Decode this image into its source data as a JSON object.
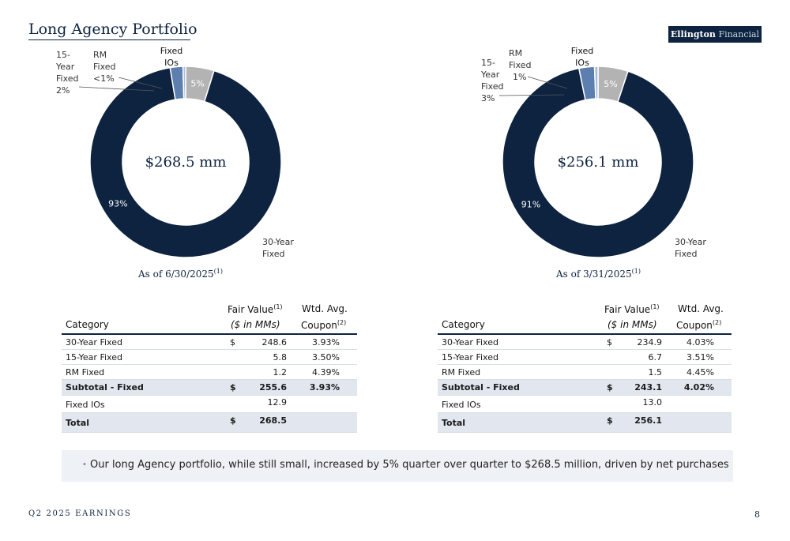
{
  "title": "Long Agency Portfolio",
  "logo": {
    "part1": "Ellington",
    "part2": "Financial"
  },
  "colors": {
    "navy": "#0d2340",
    "slate_blue": "#5d7fb0",
    "light_blue": "#a9bdd8",
    "gray": "#b3b3b3"
  },
  "chart_data": [
    {
      "type": "pie",
      "categories": [
        "30-Year Fixed",
        "15-Year Fixed",
        "RM Fixed",
        "Fixed IOs"
      ],
      "values": [
        248.6,
        5.8,
        1.2,
        12.9
      ],
      "data_labels": [
        "93%",
        "2%",
        "<1%",
        "5%"
      ],
      "center_label": "$268.5 mm",
      "caption": "As of 6/30/2025",
      "caption_note": "(1)"
    },
    {
      "type": "pie",
      "categories": [
        "30-Year Fixed",
        "15-Year Fixed",
        "RM Fixed",
        "Fixed IOs"
      ],
      "values": [
        234.9,
        6.7,
        1.5,
        13.0
      ],
      "data_labels": [
        "91%",
        "3%",
        "1%",
        "5%"
      ],
      "center_label": "$256.1 mm",
      "caption": "As of 3/31/2025",
      "caption_note": "(1)"
    }
  ],
  "labels": {
    "fixed_ios": [
      "Fixed",
      "IOs"
    ],
    "rm_fixed": [
      "RM",
      "Fixed"
    ],
    "y15": [
      "15-",
      "Year",
      "Fixed"
    ],
    "y30": [
      "30-Year",
      "Fixed"
    ]
  },
  "table_headers": {
    "category": "Category",
    "fair_value": "Fair Value",
    "fair_value_note": "(1)",
    "fair_value_sub": "($ in MMs)",
    "coupon_top": "Wtd. Avg.",
    "coupon_bottom": "Coupon",
    "coupon_note": "(2)"
  },
  "tables": [
    {
      "rows": [
        {
          "category": "30-Year Fixed",
          "dollar": "$",
          "value": "248.6",
          "coupon": "3.93%"
        },
        {
          "category": "15-Year Fixed",
          "dollar": "",
          "value": "5.8",
          "coupon": "3.50%"
        },
        {
          "category": "RM Fixed",
          "dollar": "",
          "value": "1.2",
          "coupon": "4.39%"
        }
      ],
      "subtotal": {
        "category": "Subtotal - Fixed",
        "dollar": "$",
        "value": "255.6",
        "coupon": "3.93%"
      },
      "ios": {
        "category": "Fixed IOs",
        "value": "12.9"
      },
      "total": {
        "category": "Total",
        "dollar": "$",
        "value": "268.5"
      }
    },
    {
      "rows": [
        {
          "category": "30-Year Fixed",
          "dollar": "$",
          "value": "234.9",
          "coupon": "4.03%"
        },
        {
          "category": "15-Year Fixed",
          "dollar": "",
          "value": "6.7",
          "coupon": "3.51%"
        },
        {
          "category": "RM Fixed",
          "dollar": "",
          "value": "1.5",
          "coupon": "4.45%"
        }
      ],
      "subtotal": {
        "category": "Subtotal - Fixed",
        "dollar": "$",
        "value": "243.1",
        "coupon": "4.02%"
      },
      "ios": {
        "category": "Fixed IOs",
        "value": "13.0"
      },
      "total": {
        "category": "Total",
        "dollar": "$",
        "value": "256.1"
      }
    }
  ],
  "bullet": "Our long Agency portfolio, while still small, increased by 5% quarter over quarter to $268.5 million, driven by net purchases",
  "footer": {
    "left": "Q2 2025 EARNINGS",
    "page": "8"
  }
}
